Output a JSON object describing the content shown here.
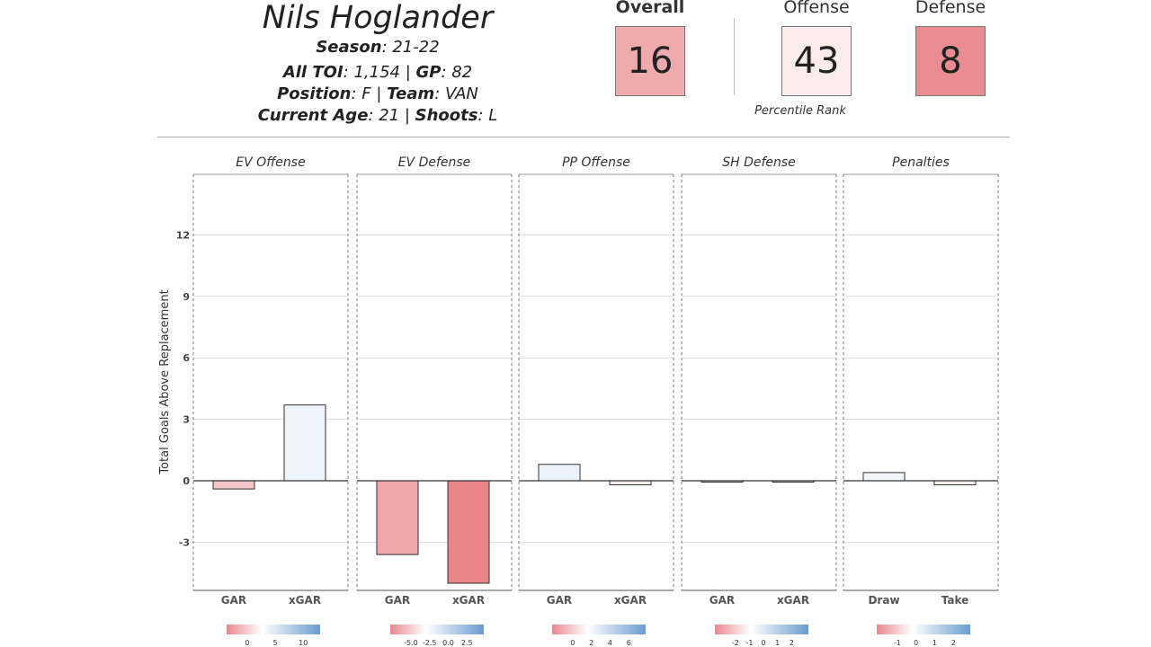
{
  "player": {
    "name": "Nils Hoglander",
    "season_label": "Season",
    "season": ": 21-22",
    "toi_label": "All TOI",
    "toi": ": 1,154 | ",
    "gp_label": "GP",
    "gp": ": 82",
    "position_label": "Position",
    "position": ": F | ",
    "team_label": "Team",
    "team": ": VAN",
    "age_label": "Current Age",
    "age": ": 21 | ",
    "shoots_label": "Shoots",
    "shoots": ": L"
  },
  "ranks": {
    "overall_label": "Overall",
    "overall_value": "16",
    "overall_color": "#eeaaad",
    "offense_label": "Offense",
    "offense_value": "43",
    "offense_color": "#fbeceb",
    "defense_label": "Defense",
    "defense_value": "8",
    "defense_color": "#e98d92",
    "percentile_label": "Percentile Rank"
  },
  "chart_data": {
    "type": "bar",
    "ylabel": "Total Goals Above Replacement",
    "ylim": [
      -5.5,
      15
    ],
    "yticks": [
      -3,
      0,
      3,
      6,
      9,
      12
    ],
    "panels": [
      {
        "title": "EV Offense",
        "categories": [
          "GAR",
          "xGAR"
        ],
        "values": [
          -0.4,
          3.7
        ],
        "colors": [
          "#f4c6c7",
          "#eef4fb"
        ],
        "legend_ticks": [
          "0",
          "5",
          "10"
        ]
      },
      {
        "title": "EV Defense",
        "categories": [
          "GAR",
          "xGAR"
        ],
        "values": [
          -3.6,
          -5.0
        ],
        "colors": [
          "#f0a7ab",
          "#e6848a"
        ],
        "legend_ticks": [
          "-5.0",
          "-2.5",
          "0.0",
          "2.5"
        ]
      },
      {
        "title": "PP Offense",
        "categories": [
          "GAR",
          "xGAR"
        ],
        "values": [
          0.8,
          -0.2
        ],
        "colors": [
          "#ecf2fa",
          "#fbeaea"
        ],
        "legend_ticks": [
          "0",
          "2",
          "4",
          "6"
        ]
      },
      {
        "title": "SH Defense",
        "categories": [
          "GAR",
          "xGAR"
        ],
        "values": [
          -0.05,
          -0.03
        ],
        "colors": [
          "#fbeaea",
          "#fbeaea"
        ],
        "legend_ticks": [
          "-2",
          "-1",
          "0",
          "1",
          "2"
        ]
      },
      {
        "title": "Penalties",
        "categories": [
          "Draw",
          "Take"
        ],
        "values": [
          0.4,
          -0.2
        ],
        "colors": [
          "#f3f7fc",
          "#fbeaea"
        ],
        "legend_ticks": [
          "-1",
          "0",
          "1",
          "2"
        ]
      }
    ]
  }
}
